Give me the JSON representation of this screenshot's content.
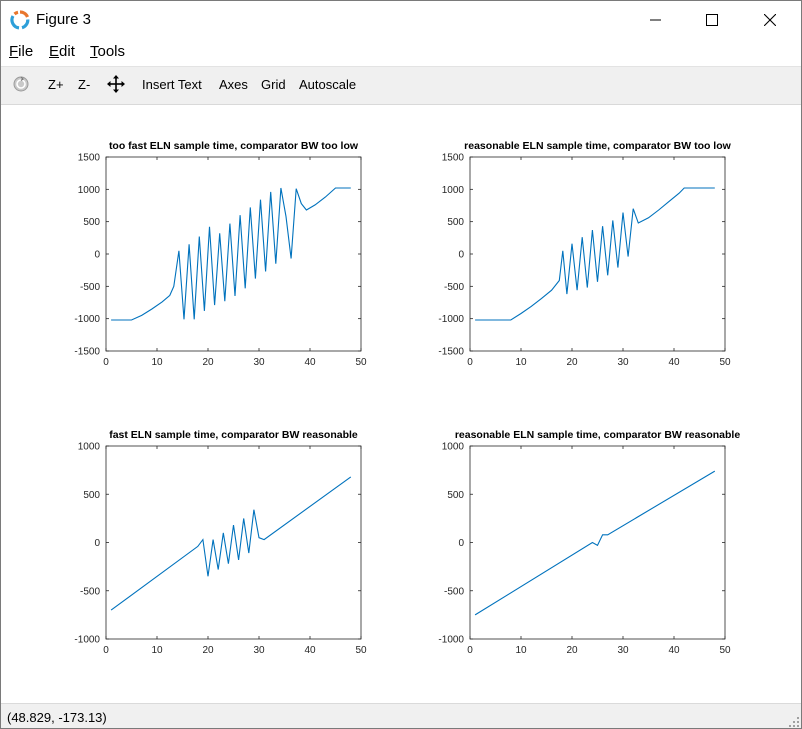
{
  "window": {
    "title": "Figure 3"
  },
  "menu": [
    {
      "label": "File",
      "underline": "F"
    },
    {
      "label": "Edit",
      "underline": "E"
    },
    {
      "label": "Tools",
      "underline": "T"
    }
  ],
  "toolbar": {
    "zoom_in": "Z+",
    "zoom_out": "Z-",
    "insert_text": "Insert Text",
    "axes": "Axes",
    "grid": "Grid",
    "autoscale": "Autoscale",
    "icons": [
      "rotate-icon",
      "pan-icon"
    ]
  },
  "status": {
    "coords": "(48.829, -173.13)"
  },
  "colors": {
    "line": "#0072bd",
    "toolbar_bg": "#f0f0f0",
    "axes": "#262626"
  },
  "chart_data": [
    {
      "type": "line",
      "title": "too fast ELN sample time, comparator BW too low",
      "xlim": [
        0,
        50
      ],
      "ylim": [
        -1500,
        1500
      ],
      "xticks": [
        0,
        10,
        20,
        30,
        40,
        50
      ],
      "yticks": [
        -1500,
        -1000,
        -500,
        0,
        500,
        1000,
        1500
      ],
      "grid": false,
      "series": [
        {
          "x": [
            1,
            5,
            7,
            9,
            11,
            12.5,
            13.3,
            14.3,
            15.3,
            16.3,
            17.3,
            18.3,
            19.3,
            20.3,
            21.3,
            22.3,
            23.3,
            24.3,
            25.3,
            26.3,
            27.3,
            28.3,
            29.3,
            30.3,
            31.3,
            32.3,
            33.3,
            34.3,
            35.3,
            36.3,
            37.3,
            38.3,
            39.3,
            41,
            43,
            45,
            48
          ],
          "y": [
            -1020,
            -1020,
            -950,
            -850,
            -740,
            -640,
            -500,
            50,
            -1010,
            150,
            -1010,
            270,
            -880,
            420,
            -790,
            320,
            -730,
            470,
            -650,
            600,
            -530,
            720,
            -380,
            840,
            -270,
            960,
            -150,
            1020,
            580,
            -70,
            1010,
            780,
            680,
            760,
            880,
            1020,
            1020
          ]
        }
      ]
    },
    {
      "type": "line",
      "title": "reasonable ELN sample time, comparator BW too low",
      "xlim": [
        0,
        50
      ],
      "ylim": [
        -1500,
        1500
      ],
      "xticks": [
        0,
        10,
        20,
        30,
        40,
        50
      ],
      "yticks": [
        -1500,
        -1000,
        -500,
        0,
        500,
        1000,
        1500
      ],
      "grid": false,
      "series": [
        {
          "x": [
            1,
            8,
            10,
            12,
            14,
            16,
            17.5,
            18.2,
            19,
            20,
            21,
            22,
            23,
            24,
            25,
            26,
            27,
            28,
            29,
            30,
            31,
            32,
            33,
            35,
            37,
            39,
            41,
            42,
            44,
            48
          ],
          "y": [
            -1020,
            -1020,
            -920,
            -810,
            -690,
            -560,
            -410,
            50,
            -620,
            160,
            -560,
            260,
            -520,
            370,
            -430,
            430,
            -330,
            520,
            -210,
            640,
            -40,
            700,
            480,
            560,
            680,
            810,
            940,
            1020,
            1020,
            1020
          ]
        }
      ]
    },
    {
      "type": "line",
      "title": "fast ELN sample time, comparator BW reasonable",
      "xlim": [
        0,
        50
      ],
      "ylim": [
        -1000,
        1000
      ],
      "xticks": [
        0,
        10,
        20,
        30,
        40,
        50
      ],
      "yticks": [
        -1000,
        -500,
        0,
        500,
        1000
      ],
      "grid": false,
      "series": [
        {
          "x": [
            1,
            18,
            19,
            20,
            21,
            22,
            23,
            24,
            25,
            26,
            27,
            28,
            29,
            30,
            31,
            48
          ],
          "y": [
            -700,
            -40,
            30,
            -350,
            30,
            -280,
            100,
            -220,
            180,
            -180,
            250,
            -110,
            340,
            50,
            30,
            680
          ]
        }
      ]
    },
    {
      "type": "line",
      "title": "reasonable ELN sample time, comparator BW reasonable",
      "xlim": [
        0,
        50
      ],
      "ylim": [
        -1000,
        1000
      ],
      "xticks": [
        0,
        10,
        20,
        30,
        40,
        50
      ],
      "yticks": [
        -1000,
        -500,
        0,
        500,
        1000
      ],
      "grid": false,
      "series": [
        {
          "x": [
            1,
            24,
            25,
            26,
            27,
            48
          ],
          "y": [
            -750,
            0,
            -30,
            80,
            80,
            740
          ]
        }
      ]
    }
  ]
}
